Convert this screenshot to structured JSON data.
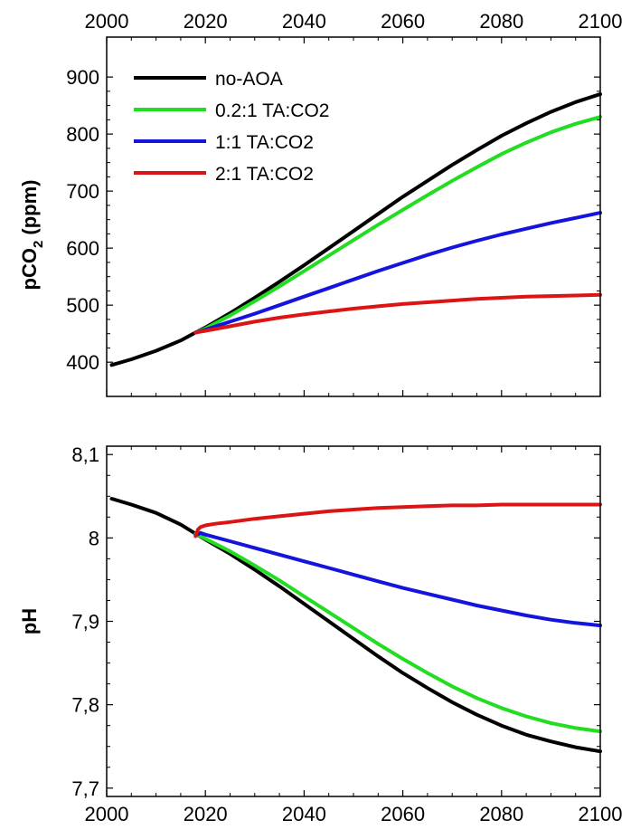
{
  "chart_data": [
    {
      "type": "line",
      "ylabel_main": "pCO",
      "ylabel_sub": "2",
      "ylabel_unit": "(ppm)",
      "xlim": [
        2000,
        2100
      ],
      "ylim": [
        340,
        970
      ],
      "xticks": [
        2000,
        2020,
        2040,
        2060,
        2080,
        2100
      ],
      "x_tick_labels": [
        "2000",
        "2020",
        "2040",
        "2060",
        "2080",
        "2100"
      ],
      "x_ticks_position": "top",
      "yticks": [
        400,
        500,
        600,
        700,
        800,
        900
      ],
      "y_tick_labels": [
        "400",
        "500",
        "600",
        "700",
        "800",
        "900"
      ],
      "legend_position": "top-left",
      "series": [
        {
          "name": "no-AOA",
          "color": "#000000",
          "x": [
            2001,
            2005,
            2010,
            2015,
            2018,
            2020,
            2025,
            2030,
            2035,
            2040,
            2045,
            2050,
            2055,
            2060,
            2065,
            2070,
            2075,
            2080,
            2085,
            2090,
            2095,
            2100
          ],
          "y": [
            395,
            405,
            420,
            438,
            452,
            461,
            486,
            513,
            541,
            570,
            600,
            630,
            660,
            690,
            718,
            746,
            772,
            797,
            819,
            839,
            856,
            870
          ]
        },
        {
          "name": "0.2:1 TA:CO2",
          "color": "#22dd22",
          "x": [
            2018,
            2020,
            2025,
            2030,
            2035,
            2040,
            2045,
            2050,
            2055,
            2060,
            2065,
            2070,
            2075,
            2080,
            2085,
            2090,
            2095,
            2100
          ],
          "y": [
            452,
            459,
            482,
            507,
            533,
            560,
            587,
            614,
            641,
            667,
            693,
            718,
            742,
            765,
            785,
            803,
            818,
            830
          ]
        },
        {
          "name": "1:1 TA:CO2",
          "color": "#1414dd",
          "x": [
            2018,
            2020,
            2025,
            2030,
            2035,
            2040,
            2045,
            2050,
            2055,
            2060,
            2065,
            2070,
            2075,
            2080,
            2085,
            2090,
            2095,
            2100
          ],
          "y": [
            452,
            457,
            471,
            485,
            500,
            515,
            530,
            545,
            560,
            574,
            588,
            601,
            613,
            624,
            634,
            644,
            653,
            662
          ]
        },
        {
          "name": "2:1 TA:CO2",
          "color": "#dd1414",
          "x": [
            2018,
            2020,
            2025,
            2030,
            2035,
            2040,
            2045,
            2050,
            2055,
            2060,
            2065,
            2070,
            2075,
            2080,
            2085,
            2090,
            2095,
            2100
          ],
          "y": [
            452,
            455,
            463,
            471,
            478,
            484,
            489,
            494,
            498,
            502,
            505,
            508,
            511,
            513,
            515,
            516,
            517,
            518
          ]
        }
      ]
    },
    {
      "type": "line",
      "ylabel": "pH",
      "xlim": [
        2000,
        2100
      ],
      "ylim": [
        7.69,
        8.11
      ],
      "xticks": [
        2000,
        2020,
        2040,
        2060,
        2080,
        2100
      ],
      "x_tick_labels": [
        "2000",
        "2020",
        "2040",
        "2060",
        "2080",
        "2100"
      ],
      "x_ticks_position": "bottom",
      "yticks": [
        7.7,
        7.8,
        7.9,
        8.0,
        8.1
      ],
      "y_tick_labels": [
        "7,7",
        "7,8",
        "7,9",
        "8",
        "8,1"
      ],
      "series": [
        {
          "name": "no-AOA",
          "color": "#000000",
          "x": [
            2001,
            2005,
            2010,
            2015,
            2018,
            2020,
            2025,
            2030,
            2035,
            2040,
            2045,
            2050,
            2055,
            2060,
            2065,
            2070,
            2075,
            2080,
            2085,
            2090,
            2095,
            2100
          ],
          "y": [
            8.047,
            8.04,
            8.03,
            8.016,
            8.005,
            7.998,
            7.981,
            7.962,
            7.942,
            7.921,
            7.9,
            7.879,
            7.858,
            7.838,
            7.82,
            7.803,
            7.788,
            7.775,
            7.764,
            7.756,
            7.749,
            7.744
          ]
        },
        {
          "name": "0.2:1 TA:CO2",
          "color": "#22dd22",
          "x": [
            2018,
            2020,
            2025,
            2030,
            2035,
            2040,
            2045,
            2050,
            2055,
            2060,
            2065,
            2070,
            2075,
            2080,
            2085,
            2090,
            2095,
            2100
          ],
          "y": [
            8.005,
            7.999,
            7.984,
            7.967,
            7.949,
            7.93,
            7.911,
            7.892,
            7.873,
            7.855,
            7.838,
            7.822,
            7.808,
            7.796,
            7.786,
            7.778,
            7.772,
            7.768
          ]
        },
        {
          "name": "1:1 TA:CO2",
          "color": "#1414dd",
          "x": [
            2018,
            2019,
            2020,
            2025,
            2030,
            2035,
            2040,
            2045,
            2050,
            2055,
            2060,
            2065,
            2070,
            2075,
            2080,
            2085,
            2090,
            2095,
            2100
          ],
          "y": [
            8.003,
            8.006,
            8.004,
            7.996,
            7.988,
            7.98,
            7.972,
            7.964,
            7.956,
            7.948,
            7.94,
            7.933,
            7.926,
            7.919,
            7.913,
            7.907,
            7.902,
            7.898,
            7.895
          ]
        },
        {
          "name": "2:1 TA:CO2",
          "color": "#dd1414",
          "x": [
            2018,
            2018.5,
            2019,
            2020,
            2022,
            2025,
            2030,
            2035,
            2040,
            2045,
            2050,
            2055,
            2060,
            2065,
            2070,
            2075,
            2080,
            2085,
            2090,
            2095,
            2100
          ],
          "y": [
            8.002,
            8.01,
            8.013,
            8.015,
            8.017,
            8.019,
            8.023,
            8.026,
            8.029,
            8.032,
            8.034,
            8.036,
            8.037,
            8.038,
            8.039,
            8.039,
            8.04,
            8.04,
            8.04,
            8.04,
            8.04
          ]
        }
      ]
    }
  ]
}
